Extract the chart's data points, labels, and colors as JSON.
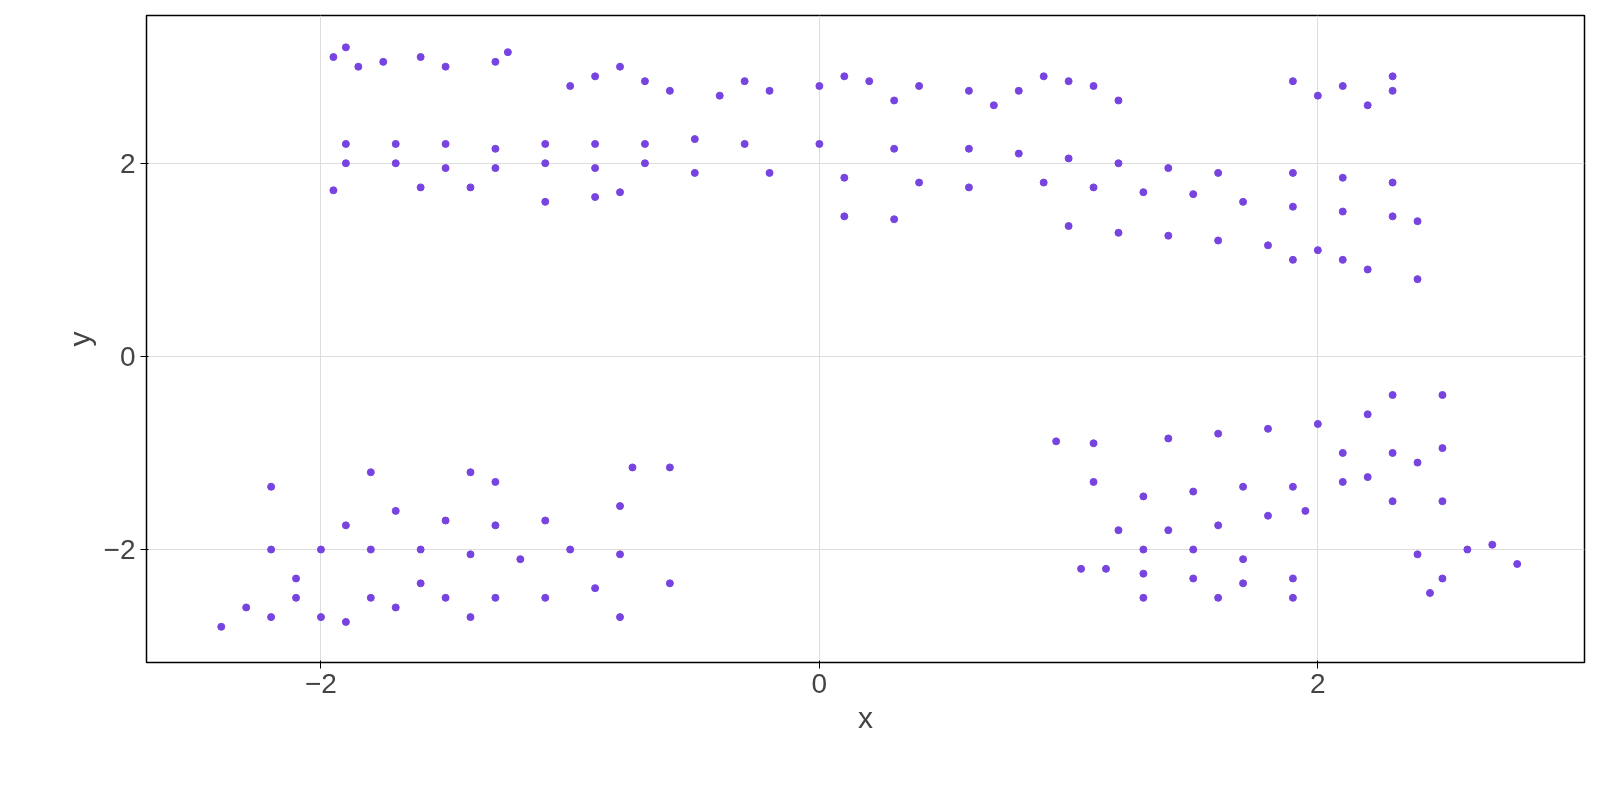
{
  "chart_data": {
    "type": "scatter",
    "xlabel": "x",
    "ylabel": "y",
    "xlim": [
      -2.7,
      3.07
    ],
    "ylim": [
      -3.17,
      3.53
    ],
    "xticks": [
      -2,
      0,
      2
    ],
    "yticks": [
      -2,
      0,
      2
    ],
    "grid": true,
    "marker": "circle",
    "series": [
      {
        "color": "#7744e0",
        "x": [
          -1.95,
          -1.85,
          -1.75,
          -1.6,
          -1.5,
          -1.3,
          -1.25,
          -1.9,
          -1.0,
          -0.9,
          -0.8,
          -0.7,
          -0.6,
          -0.4,
          -0.2,
          0,
          0.1,
          0.2,
          0.4,
          0.6,
          0.8,
          0.9,
          1.0,
          1.1,
          1.2,
          -0.3,
          0.3,
          0.7,
          1.9,
          2.0,
          2.1,
          2.2,
          2.3,
          2.3,
          -1.9,
          -1.7,
          -1.5,
          -1.3,
          -1.1,
          -0.9,
          -0.7,
          -0.5,
          -0.3,
          0,
          0.3,
          0.6,
          0.8,
          1.0,
          1.2,
          1.4,
          1.6,
          -1.9,
          -1.7,
          -1.5,
          -1.3,
          -1.1,
          -0.9,
          -0.7,
          -1.95,
          -1.6,
          -1.4,
          -1.1,
          -0.9,
          -0.8,
          -0.5,
          -0.2,
          0.1,
          0.4,
          0.6,
          0.1,
          0.3,
          0.9,
          1.1,
          1.3,
          1.5,
          1.7,
          1.9,
          2.1,
          2.3,
          2.4,
          1.9,
          2.1,
          2.3,
          1.0,
          1.2,
          1.4,
          1.6,
          1.8,
          2.0,
          2.1,
          2.2,
          2.4,
          1.9,
          -2.4,
          -2.3,
          -2.2,
          -2.1,
          -2.0,
          -1.9,
          -1.8,
          -2.2,
          -2.0,
          -1.8,
          -1.6,
          -1.4,
          -1.2,
          -1.0,
          -0.8,
          -1.9,
          -1.7,
          -1.5,
          -1.3,
          -1.1,
          -0.8,
          -1.7,
          -1.5,
          -1.3,
          -1.1,
          -0.9,
          -1.4,
          -0.8,
          -1.8,
          -1.4,
          -1.3,
          -2.2,
          -0.75,
          -0.6,
          -0.6,
          -2.1,
          -1.6,
          0.95,
          1.1,
          1.4,
          1.6,
          1.8,
          2.0,
          2.2,
          2.3,
          2.5,
          1.1,
          1.3,
          1.5,
          1.7,
          1.9,
          2.1,
          2.2,
          2.1,
          2.3,
          2.5,
          2.4,
          2.3,
          2.5,
          1.2,
          1.4,
          1.6,
          1.8,
          1.95,
          1.3,
          1.5,
          1.7,
          1.3,
          1.5,
          1.7,
          1.9,
          1.3,
          1.6,
          1.9,
          1.05,
          1.15,
          2.4,
          2.5,
          2.6,
          2.7,
          2.8,
          2.45
        ],
        "values": [
          3.1,
          3.0,
          3.05,
          3.1,
          3.0,
          3.05,
          3.15,
          3.2,
          2.8,
          2.9,
          3.0,
          2.85,
          2.75,
          2.7,
          2.75,
          2.8,
          2.9,
          2.85,
          2.8,
          2.75,
          2.75,
          2.9,
          2.85,
          2.8,
          2.65,
          2.85,
          2.65,
          2.6,
          2.85,
          2.7,
          2.8,
          2.6,
          2.75,
          2.9,
          2.2,
          2.2,
          2.2,
          2.15,
          2.2,
          2.2,
          2.2,
          2.25,
          2.2,
          2.2,
          2.15,
          2.15,
          2.1,
          2.05,
          2.0,
          1.95,
          1.9,
          2.0,
          2.0,
          1.95,
          1.95,
          2.0,
          1.95,
          2.0,
          1.72,
          1.75,
          1.75,
          1.6,
          1.65,
          1.7,
          1.9,
          1.9,
          1.85,
          1.8,
          1.75,
          1.45,
          1.42,
          1.8,
          1.75,
          1.7,
          1.68,
          1.6,
          1.55,
          1.5,
          1.45,
          1.4,
          1.9,
          1.85,
          1.8,
          1.35,
          1.28,
          1.25,
          1.2,
          1.15,
          1.1,
          1.0,
          0.9,
          0.8,
          1.0,
          -2.8,
          -2.6,
          -2.7,
          -2.5,
          -2.7,
          -2.75,
          -2.5,
          -2.0,
          -2.0,
          -2.0,
          -2.0,
          -2.05,
          -2.1,
          -2.0,
          -2.05,
          -1.75,
          -1.6,
          -1.7,
          -1.75,
          -1.7,
          -1.55,
          -2.6,
          -2.5,
          -2.5,
          -2.5,
          -2.4,
          -2.7,
          -2.7,
          -1.2,
          -1.2,
          -1.3,
          -1.35,
          -1.15,
          -1.15,
          -2.35,
          -2.3,
          -2.35,
          -0.88,
          -0.9,
          -0.85,
          -0.8,
          -0.75,
          -0.7,
          -0.6,
          -0.4,
          -0.4,
          -1.3,
          -1.45,
          -1.4,
          -1.35,
          -1.35,
          -1.3,
          -1.25,
          -1.0,
          -1.0,
          -0.95,
          -1.1,
          -1.5,
          -1.5,
          -1.8,
          -1.8,
          -1.75,
          -1.65,
          -1.6,
          -2.0,
          -2.0,
          -2.1,
          -2.25,
          -2.3,
          -2.35,
          -2.3,
          -2.5,
          -2.5,
          -2.5,
          -2.2,
          -2.2,
          -2.05,
          -2.3,
          -2.0,
          -1.95,
          -2.15,
          -2.45
        ]
      }
    ]
  }
}
